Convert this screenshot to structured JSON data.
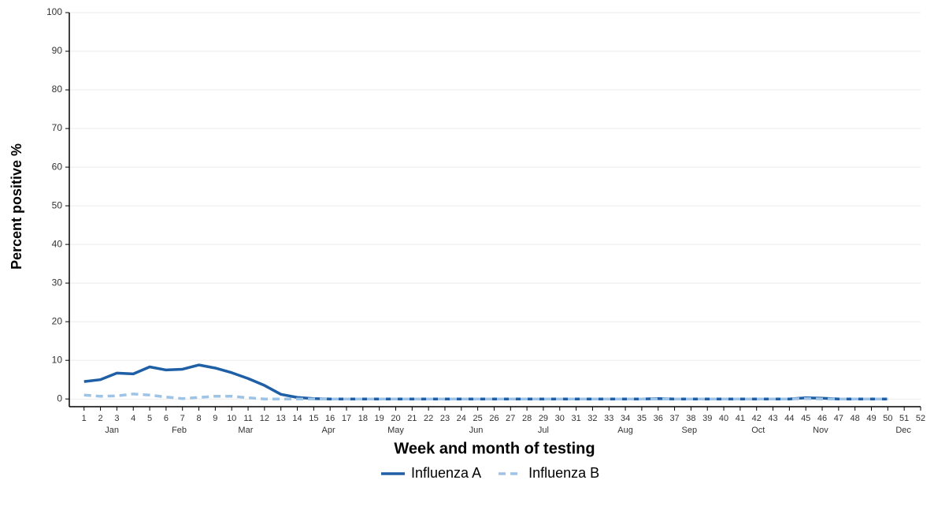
{
  "chart_data": {
    "type": "line",
    "xlabel": "Week and month of testing",
    "ylabel": "Percent positive %",
    "x": [
      1,
      2,
      3,
      4,
      5,
      6,
      7,
      8,
      9,
      10,
      11,
      12,
      13,
      14,
      15,
      16,
      17,
      18,
      19,
      20,
      21,
      22,
      23,
      24,
      25,
      26,
      27,
      28,
      29,
      30,
      31,
      32,
      33,
      34,
      35,
      36,
      37,
      38,
      39,
      40,
      41,
      42,
      43,
      44,
      45,
      46,
      47,
      48,
      49,
      50
    ],
    "series": [
      {
        "name": "Influenza A",
        "color": "#1f5fa6",
        "dash": false,
        "values": [
          4.5,
          5,
          6.7,
          6.5,
          8.3,
          7.5,
          7.7,
          8.8,
          8,
          6.8,
          5.3,
          3.5,
          1.2,
          0.4,
          0.1,
          0,
          0,
          0,
          0,
          0,
          0,
          0,
          0,
          0,
          0,
          0,
          0,
          0,
          0,
          0,
          0,
          0,
          0,
          0,
          0,
          0.1,
          0,
          0,
          0,
          0,
          0,
          0,
          0,
          0,
          0.3,
          0.2,
          0,
          0,
          0,
          0
        ]
      },
      {
        "name": "Influenza B",
        "color": "#9dc3e6",
        "dash": true,
        "values": [
          1,
          0.7,
          0.8,
          1.3,
          1,
          0.5,
          0.1,
          0.4,
          0.7,
          0.7,
          0.3,
          0,
          0,
          0,
          0,
          0,
          0,
          0,
          0,
          0,
          0,
          0,
          0,
          0,
          0,
          0,
          0,
          0,
          0,
          0,
          0,
          0,
          0,
          0,
          0,
          0,
          0,
          0,
          0,
          0,
          0,
          0,
          0,
          0,
          0.1,
          0,
          0,
          0,
          0,
          0
        ]
      }
    ],
    "xlim": [
      0.1,
      52
    ],
    "ylim": [
      -2,
      100
    ],
    "xticks": [
      1,
      2,
      3,
      4,
      5,
      6,
      7,
      8,
      9,
      10,
      11,
      12,
      13,
      14,
      15,
      16,
      17,
      18,
      19,
      20,
      21,
      22,
      23,
      24,
      25,
      26,
      27,
      28,
      29,
      30,
      31,
      32,
      33,
      34,
      35,
      36,
      37,
      38,
      39,
      40,
      41,
      42,
      43,
      44,
      45,
      46,
      47,
      48,
      49,
      50,
      51,
      52
    ],
    "month_ticks": [
      {
        "value": 2.7,
        "label": "Jan"
      },
      {
        "value": 6.8,
        "label": "Feb"
      },
      {
        "value": 10.85,
        "label": "Mar"
      },
      {
        "value": 15.9,
        "label": "Apr"
      },
      {
        "value": 20,
        "label": "May"
      },
      {
        "value": 24.9,
        "label": "Jun"
      },
      {
        "value": 29,
        "label": "Jul"
      },
      {
        "value": 34,
        "label": "Aug"
      },
      {
        "value": 37.9,
        "label": "Sep"
      },
      {
        "value": 42.1,
        "label": "Oct"
      },
      {
        "value": 45.9,
        "label": "Nov"
      },
      {
        "value": 50.95,
        "label": "Dec"
      }
    ],
    "yticks": [
      0,
      10,
      20,
      30,
      40,
      50,
      60,
      70,
      80,
      90,
      100
    ],
    "grid": true,
    "legend": "bottom"
  }
}
